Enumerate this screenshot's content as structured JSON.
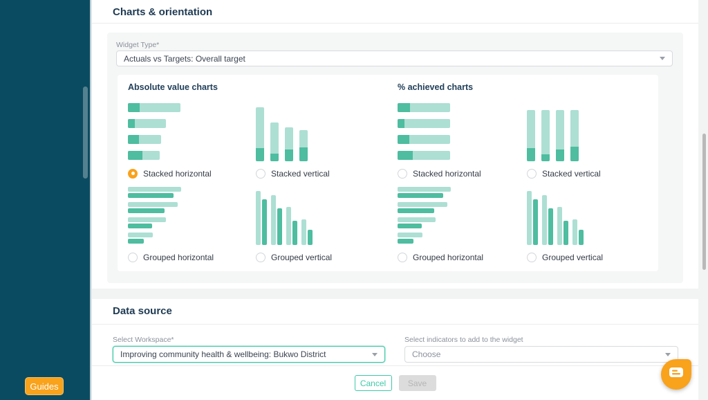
{
  "colors": {
    "sidebar": "#0b4b61",
    "accent_orange": "#f9a21b",
    "accent_teal": "#3fc9a6",
    "bar_dark": "#4ebda0",
    "bar_light": "#addfd3",
    "title_navy": "#1e3a53"
  },
  "sidebar": {
    "guides_label": "Guides"
  },
  "charts_card": {
    "title": "Charts & orientation",
    "widget_type": {
      "label": "Widget Type*",
      "value": "Actuals vs Targets: Overall target"
    },
    "column_headings": [
      {
        "label": "Absolute value charts"
      },
      {
        "label": "% achieved charts"
      }
    ],
    "options": [
      {
        "section": "absolute",
        "label": "Stacked horizontal",
        "selected": true,
        "thumbnail": {
          "type": "stacked-h",
          "bars": [
            {
              "total": 76,
              "dark": 17
            },
            {
              "total": 55,
              "dark": 10
            },
            {
              "total": 48,
              "dark": 16
            },
            {
              "total": 46,
              "dark": 21
            }
          ]
        }
      },
      {
        "section": "absolute",
        "label": "Stacked vertical",
        "selected": false,
        "thumbnail": {
          "type": "stacked-v",
          "bars": [
            {
              "total": 78,
              "dark": 19
            },
            {
              "total": 56,
              "dark": 11
            },
            {
              "total": 49,
              "dark": 17
            },
            {
              "total": 45,
              "dark": 20
            }
          ]
        }
      },
      {
        "section": "percent",
        "label": "Stacked horizontal",
        "selected": false,
        "thumbnail": {
          "type": "stacked-h",
          "bars": [
            {
              "total": 76,
              "dark": 18
            },
            {
              "total": 76,
              "dark": 10
            },
            {
              "total": 76,
              "dark": 17
            },
            {
              "total": 76,
              "dark": 22
            }
          ]
        }
      },
      {
        "section": "percent",
        "label": "Stacked vertical",
        "selected": false,
        "thumbnail": {
          "type": "stacked-v",
          "bars": [
            {
              "total": 74,
              "dark": 19
            },
            {
              "total": 74,
              "dark": 10
            },
            {
              "total": 74,
              "dark": 17
            },
            {
              "total": 74,
              "dark": 21
            }
          ]
        }
      },
      {
        "section": "absolute",
        "label": "Grouped horizontal",
        "selected": false,
        "thumbnail": {
          "type": "grouped-h",
          "bars": [
            {
              "light": 77,
              "dark": 66
            },
            {
              "light": 72,
              "dark": 53
            },
            {
              "light": 55,
              "dark": 35
            },
            {
              "light": 36,
              "dark": 23
            }
          ]
        }
      },
      {
        "section": "absolute",
        "label": "Grouped vertical",
        "selected": false,
        "thumbnail": {
          "type": "grouped-v",
          "bars": [
            {
              "light": 78,
              "dark": 66
            },
            {
              "light": 72,
              "dark": 53
            },
            {
              "light": 55,
              "dark": 35
            },
            {
              "light": 37,
              "dark": 22
            }
          ]
        }
      },
      {
        "section": "percent",
        "label": "Grouped horizontal",
        "selected": false,
        "thumbnail": {
          "type": "grouped-h",
          "bars": [
            {
              "light": 77,
              "dark": 66
            },
            {
              "light": 72,
              "dark": 53
            },
            {
              "light": 55,
              "dark": 35
            },
            {
              "light": 36,
              "dark": 23
            }
          ]
        }
      },
      {
        "section": "percent",
        "label": "Grouped vertical",
        "selected": false,
        "thumbnail": {
          "type": "grouped-v",
          "bars": [
            {
              "light": 78,
              "dark": 66
            },
            {
              "light": 72,
              "dark": 53
            },
            {
              "light": 55,
              "dark": 35
            },
            {
              "light": 37,
              "dark": 22
            }
          ]
        }
      }
    ]
  },
  "data_source_card": {
    "title": "Data source",
    "workspace": {
      "label": "Select Workspace*",
      "value": "Improving community health & wellbeing: Bukwo District"
    },
    "indicators": {
      "label": "Select indicators to add to the widget",
      "placeholder": "Choose"
    }
  },
  "footer": {
    "cancel_label": "Cancel",
    "save_label": "Save"
  }
}
